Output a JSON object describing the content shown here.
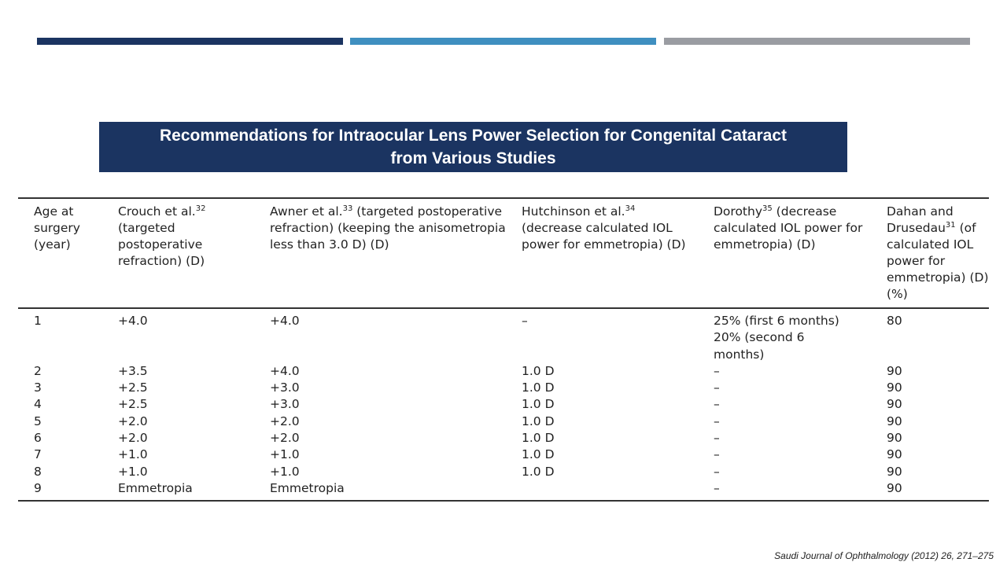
{
  "title": {
    "line1": "Recommendations for Intraocular Lens Power Selection for Congenital Cataract",
    "line2": "from Various Studies"
  },
  "table": {
    "headers": [
      {
        "text": "Age at surgery (year)",
        "sup": ""
      },
      {
        "pre": "Crouch et al.",
        "sup": "32",
        "post": " (targeted postoperative refraction) (D)"
      },
      {
        "pre": "Awner et al.",
        "sup": "33",
        "post": " (targeted postoperative refraction) (keeping the anisometropia less than 3.0 D) (D)"
      },
      {
        "pre": "Hutchinson et al.",
        "sup": "34",
        "post": " (decrease calculated IOL power for emmetropia) (D)"
      },
      {
        "pre": "Dorothy",
        "sup": "35",
        "post": " (decrease calculated IOL power for emmetropia) (D)"
      },
      {
        "pre": "Dahan and Drusedau",
        "sup": "31",
        "post": " (of calculated IOL power for emmetropia) (D) (%)"
      }
    ],
    "rows": [
      [
        "1",
        "+4.0",
        "+4.0",
        "–",
        "25% (first 6 months) 20% (second 6 months)",
        "80"
      ],
      [
        "2",
        "+3.5",
        "+4.0",
        "1.0 D",
        "–",
        "90"
      ],
      [
        "3",
        "+2.5",
        "+3.0",
        "1.0 D",
        "–",
        "90"
      ],
      [
        "4",
        "+2.5",
        "+3.0",
        "1.0 D",
        "–",
        "90"
      ],
      [
        "5",
        "+2.0",
        "+2.0",
        "1.0 D",
        "–",
        "90"
      ],
      [
        "6",
        "+2.0",
        "+2.0",
        "1.0 D",
        "–",
        "90"
      ],
      [
        "7",
        "+1.0",
        "+1.0",
        "1.0 D",
        "–",
        "90"
      ],
      [
        "8",
        "+1.0",
        "+1.0",
        "1.0 D",
        "–",
        "90"
      ],
      [
        "9",
        "Emmetropia",
        "Emmetropia",
        "",
        "–",
        "90"
      ]
    ]
  },
  "citation": "Saudi Journal of Ophthalmology (2012) 26, 271–275",
  "colors": {
    "navy": "#1b3461",
    "blue": "#3f8fc0",
    "gray": "#9a9ca2"
  }
}
